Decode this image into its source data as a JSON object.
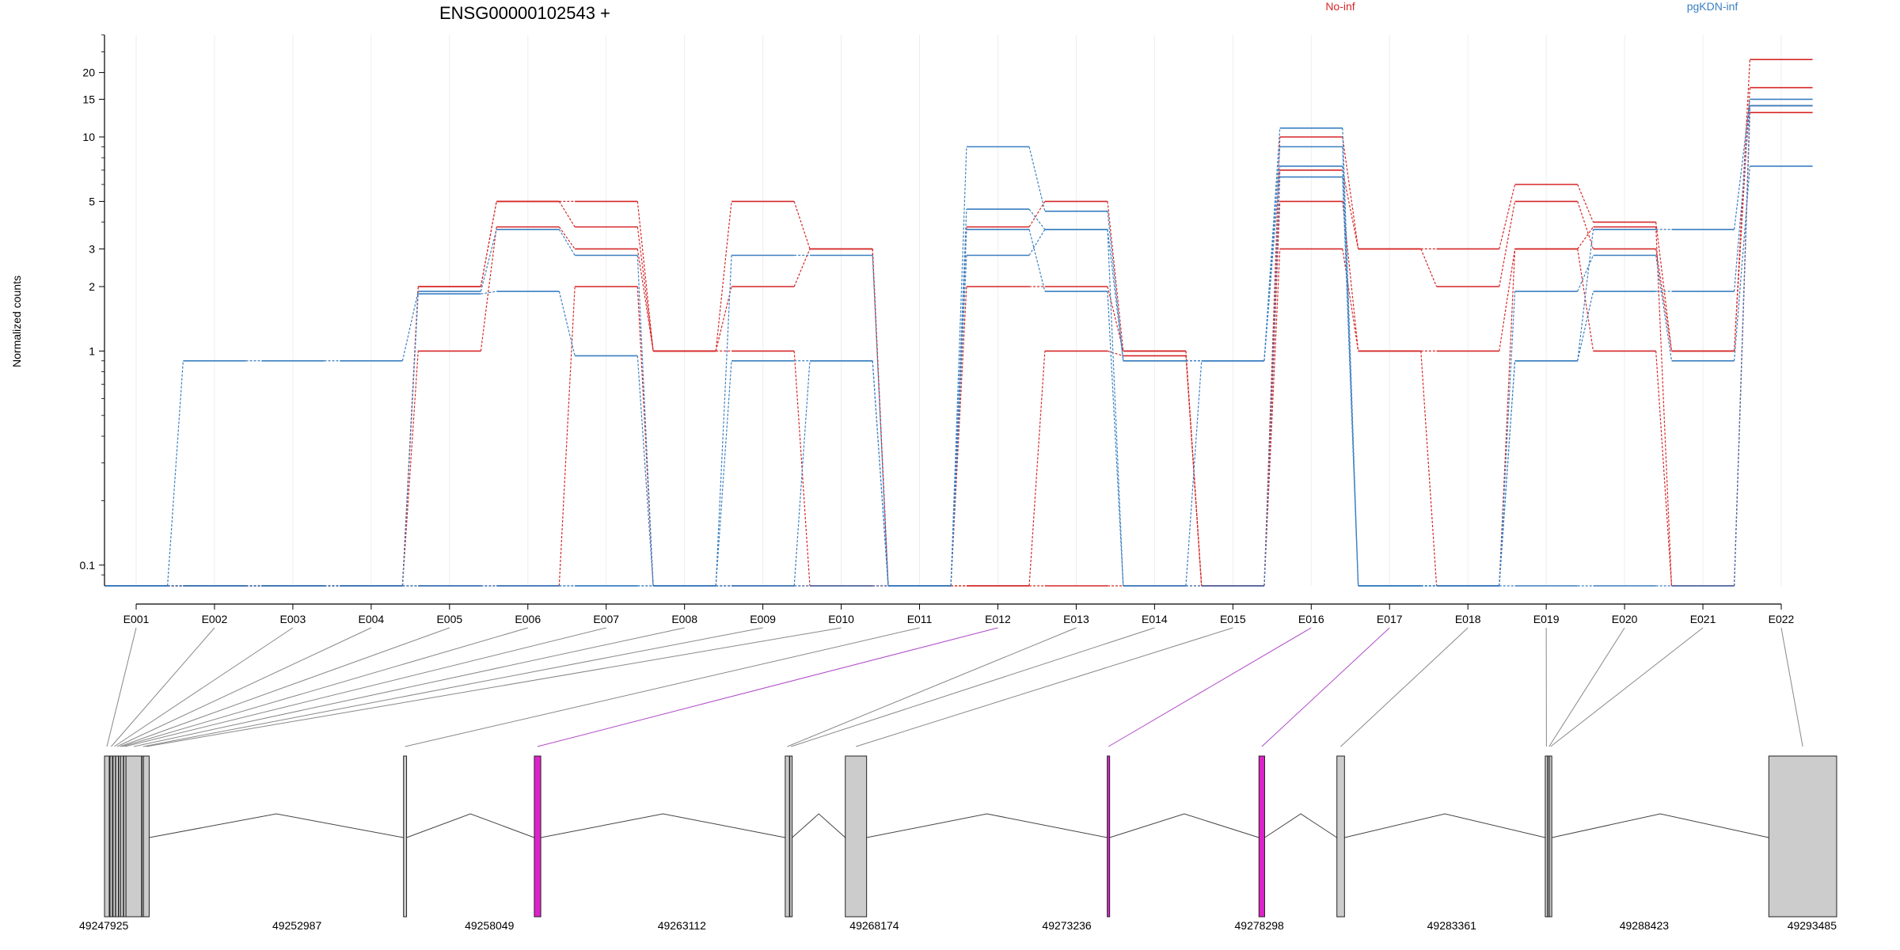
{
  "title": "ENSG00000102543 +",
  "ylabel": "Normalized counts",
  "legend": [
    {
      "name": "No-inf",
      "color": "#d62728"
    },
    {
      "name": "pgKDN-inf",
      "color": "#3a7fc1"
    }
  ],
  "colors": {
    "red": "#d62728",
    "blue": "#3a7fc1",
    "exon": "#cccccc",
    "highlight": "#dd22cc",
    "connector": "#888888",
    "connector_hi": "#b04cc8"
  },
  "chart_data": {
    "type": "line",
    "yscale": "log",
    "ylim": [
      0.08,
      30
    ],
    "yticks": [
      0.1,
      1,
      2,
      3,
      5,
      10,
      15,
      20
    ],
    "ytick_labels": [
      "0.1",
      "1",
      "2",
      "3",
      "5",
      "10",
      "15",
      "20"
    ],
    "categories": [
      "E001",
      "E002",
      "E003",
      "E004",
      "E005",
      "E006",
      "E007",
      "E008",
      "E009",
      "E010",
      "E011",
      "E012",
      "E013",
      "E014",
      "E015",
      "E016",
      "E017",
      "E018",
      "E019",
      "E020",
      "E021",
      "E022"
    ],
    "grid": "vertical",
    "series": [
      {
        "group": "No-inf",
        "values": [
          0.08,
          0.08,
          0.08,
          0.08,
          2,
          5,
          5,
          1,
          5,
          3,
          0.08,
          3.8,
          5,
          1,
          0.08,
          10,
          3,
          3,
          6,
          4,
          1,
          23
        ]
      },
      {
        "group": "No-inf",
        "values": [
          0.08,
          0.08,
          0.08,
          0.08,
          1,
          3.8,
          3,
          1,
          2,
          3,
          0.08,
          2,
          2,
          1,
          0.08,
          7,
          3,
          2,
          5,
          3,
          1,
          17
        ]
      },
      {
        "group": "No-inf",
        "values": [
          0.08,
          0.08,
          0.08,
          0.08,
          2,
          5,
          3.8,
          1,
          1,
          0.08,
          0.08,
          0.08,
          1,
          0.95,
          0.08,
          5,
          1,
          1,
          3,
          1,
          0.08,
          14
        ]
      },
      {
        "group": "No-inf",
        "values": [
          0.08,
          0.08,
          0.08,
          0.08,
          0.08,
          0.08,
          2,
          0.08,
          0.08,
          0.08,
          0.08,
          0.08,
          0.08,
          0.08,
          0.08,
          3,
          1,
          0.08,
          3,
          3.8,
          0.08,
          13
        ]
      },
      {
        "group": "pgKDN-inf",
        "values": [
          0.08,
          0.9,
          0.9,
          0.9,
          1.9,
          3.7,
          2.8,
          0.08,
          2.8,
          2.8,
          0.08,
          9,
          4.5,
          0.9,
          0.9,
          11,
          0.08,
          0.08,
          0.9,
          3.7,
          3.7,
          15
        ]
      },
      {
        "group": "pgKDN-inf",
        "values": [
          0.08,
          0.08,
          0.08,
          0.08,
          1.85,
          1.9,
          0.95,
          0.08,
          0.9,
          0.9,
          0.08,
          4.6,
          3.7,
          0.9,
          0.9,
          9,
          0.08,
          0.08,
          0.9,
          1.9,
          1.9,
          14
        ]
      },
      {
        "group": "pgKDN-inf",
        "values": [
          0.08,
          0.08,
          0.08,
          0.08,
          0.08,
          0.08,
          0.08,
          0.08,
          0.08,
          0.9,
          0.08,
          3.7,
          1.9,
          0.08,
          0.9,
          7.3,
          0.08,
          0.08,
          1.9,
          2.8,
          0.9,
          7.3
        ]
      },
      {
        "group": "pgKDN-inf",
        "values": [
          0.08,
          0.08,
          0.08,
          0.08,
          0.08,
          0.08,
          0.08,
          0.08,
          0.08,
          0.08,
          0.08,
          2.8,
          3.7,
          0.08,
          0.08,
          6.5,
          0.08,
          0.08,
          0.08,
          0.08,
          0.08,
          14
        ]
      }
    ]
  },
  "gene_model": {
    "start": 49247925,
    "end": 49293485,
    "coordinate_labels": [
      "49247925",
      "49252987",
      "49258049",
      "49263112",
      "49268174",
      "49273236",
      "49278298",
      "49283361",
      "49288423",
      "49293485"
    ],
    "exons": [
      {
        "id": "E001",
        "start": 49247925,
        "end": 49248050,
        "highlight": false
      },
      {
        "id": "E002",
        "start": 49248070,
        "end": 49248130,
        "highlight": false
      },
      {
        "id": "E003",
        "start": 49248150,
        "end": 49248210,
        "highlight": false
      },
      {
        "id": "E004",
        "start": 49248220,
        "end": 49248290,
        "highlight": false
      },
      {
        "id": "E005",
        "start": 49248300,
        "end": 49248340,
        "highlight": false
      },
      {
        "id": "E006",
        "start": 49248350,
        "end": 49248420,
        "highlight": false
      },
      {
        "id": "E007",
        "start": 49248430,
        "end": 49248480,
        "highlight": false
      },
      {
        "id": "E008",
        "start": 49248490,
        "end": 49248900,
        "highlight": false
      },
      {
        "id": "E009",
        "start": 49248910,
        "end": 49248940,
        "highlight": false
      },
      {
        "id": "E010",
        "start": 49248950,
        "end": 49249100,
        "highlight": false
      },
      {
        "id": "E011",
        "start": 49255790,
        "end": 49255870,
        "highlight": false
      },
      {
        "id": "E012",
        "start": 49259230,
        "end": 49259400,
        "highlight": true
      },
      {
        "id": "E013",
        "start": 49265830,
        "end": 49265940,
        "highlight": false
      },
      {
        "id": "E014",
        "start": 49265950,
        "end": 49266010,
        "highlight": false
      },
      {
        "id": "E015",
        "start": 49267410,
        "end": 49267970,
        "highlight": false
      },
      {
        "id": "E016",
        "start": 49274300,
        "end": 49274360,
        "highlight": true
      },
      {
        "id": "E017",
        "start": 49278290,
        "end": 49278440,
        "highlight": true
      },
      {
        "id": "E018",
        "start": 49280340,
        "end": 49280540,
        "highlight": false
      },
      {
        "id": "E019",
        "start": 49285820,
        "end": 49285880,
        "highlight": false
      },
      {
        "id": "E020",
        "start": 49285890,
        "end": 49285920,
        "highlight": false
      },
      {
        "id": "E021",
        "start": 49285930,
        "end": 49285950,
        "highlight": false
      },
      {
        "id": "E022",
        "start": 49291700,
        "end": 49293485,
        "highlight": false
      }
    ]
  }
}
